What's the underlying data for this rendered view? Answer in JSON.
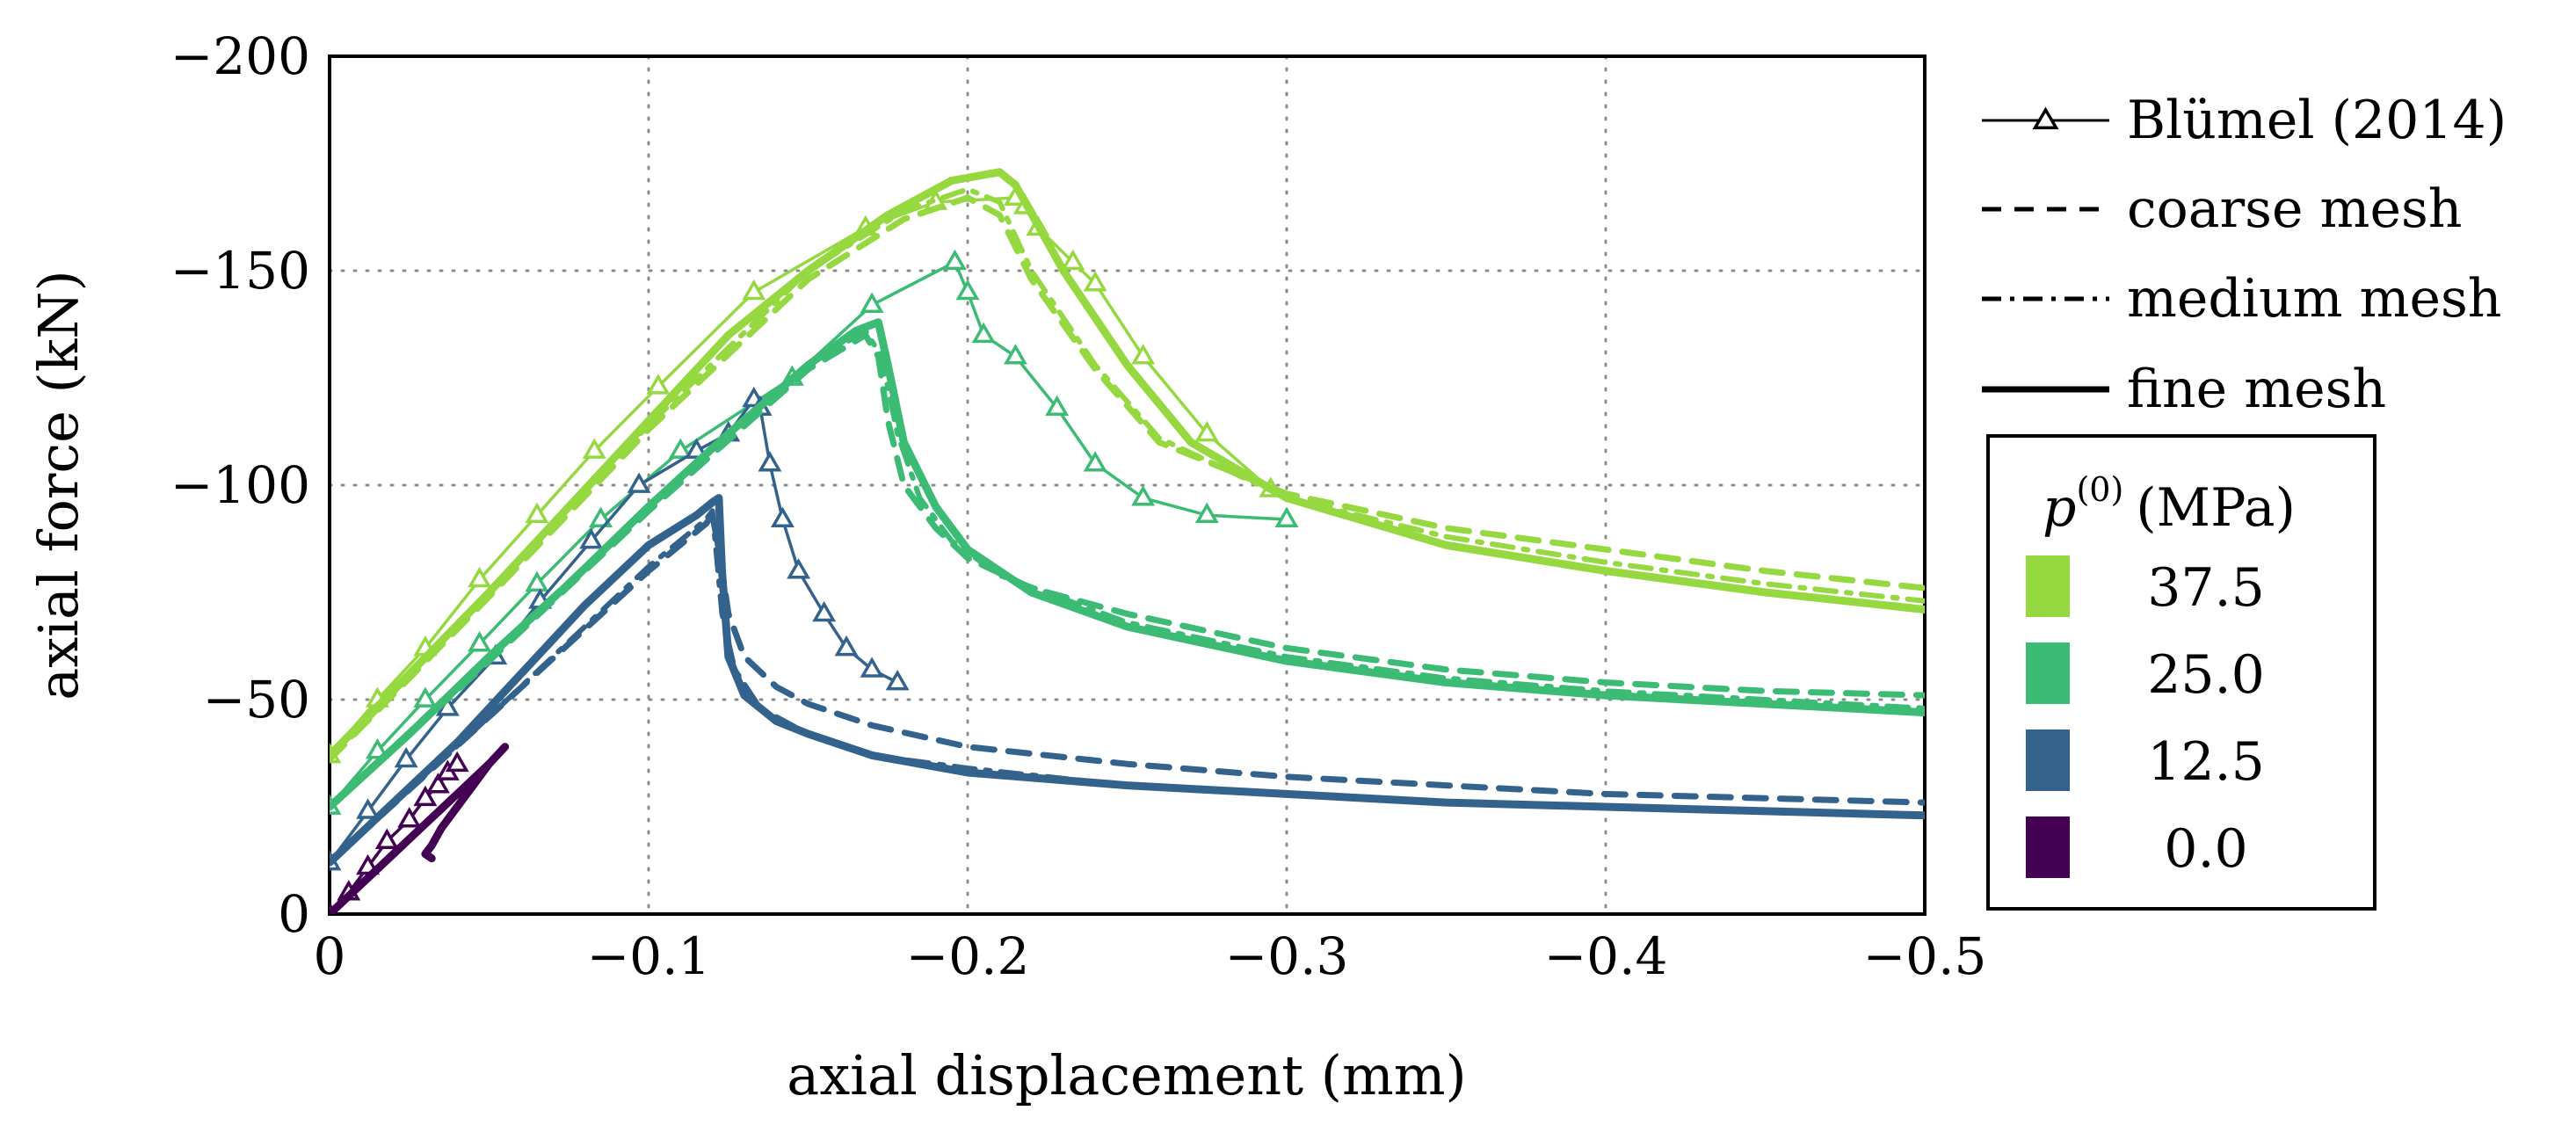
{
  "chart_data": {
    "type": "line",
    "title": "",
    "xlabel": "axial displacement (mm)",
    "ylabel": "axial force (kN)",
    "xlim": [
      0,
      -0.5
    ],
    "ylim": [
      0,
      -200
    ],
    "grid": true,
    "x_ticks": [
      0,
      -0.1,
      -0.2,
      -0.3,
      -0.4,
      -0.5
    ],
    "x_tick_labels": [
      "0",
      "−0.1",
      "−0.2",
      "−0.3",
      "−0.4",
      "−0.5"
    ],
    "y_ticks": [
      0,
      -50,
      -100,
      -150,
      -200
    ],
    "y_tick_labels": [
      "0",
      "−50",
      "−100",
      "−150",
      "−200"
    ],
    "style_legend": [
      {
        "label": "Blümel (2014)",
        "style": "marker-triangle"
      },
      {
        "label": "coarse mesh",
        "style": "dashed"
      },
      {
        "label": "medium mesh",
        "style": "dashdot"
      },
      {
        "label": "fine mesh",
        "style": "solid"
      }
    ],
    "pressure_legend": {
      "title_symbol": "p",
      "title_superscript": "(0)",
      "title_unit": "(MPa)",
      "entries": [
        {
          "label": "37.5",
          "color": "#95d840"
        },
        {
          "label": "25.0",
          "color": "#3cbb75"
        },
        {
          "label": "12.5",
          "color": "#33638d"
        },
        {
          "label": "0.0",
          "color": "#440154"
        }
      ]
    },
    "series": [
      {
        "name": "Blümel (2014)",
        "pressure": "37.5",
        "style": "marker-triangle",
        "color": "#95d840",
        "x": [
          0,
          -0.015,
          -0.03,
          -0.047,
          -0.065,
          -0.083,
          -0.103,
          -0.133,
          -0.168,
          -0.19,
          -0.215,
          -0.218,
          -0.222,
          -0.233,
          -0.24,
          -0.255,
          -0.275,
          -0.295
        ],
        "y": [
          -37,
          -50,
          -62,
          -78,
          -93,
          -108,
          -123,
          -145,
          -160,
          -166,
          -167,
          -165,
          -160,
          -152,
          -147,
          -130,
          -112,
          -99
        ]
      },
      {
        "name": "Blümel (2014)",
        "pressure": "25.0",
        "style": "marker-triangle",
        "color": "#3cbb75",
        "x": [
          0,
          -0.015,
          -0.03,
          -0.047,
          -0.065,
          -0.085,
          -0.11,
          -0.145,
          -0.17,
          -0.196,
          -0.2,
          -0.205,
          -0.215,
          -0.228,
          -0.24,
          -0.255,
          -0.275,
          -0.3
        ],
        "y": [
          -25,
          -38,
          -50,
          -63,
          -77,
          -92,
          -108,
          -125,
          -142,
          -152,
          -145,
          -135,
          -130,
          -118,
          -105,
          -97,
          -93,
          -92
        ]
      },
      {
        "name": "Blümel (2014)",
        "pressure": "12.5",
        "style": "marker-triangle",
        "color": "#33638d",
        "x": [
          0,
          -0.012,
          -0.024,
          -0.037,
          -0.052,
          -0.066,
          -0.082,
          -0.097,
          -0.115,
          -0.125,
          -0.133,
          -0.135,
          -0.138,
          -0.142,
          -0.147,
          -0.155,
          -0.162,
          -0.17,
          -0.178
        ],
        "y": [
          -12,
          -24,
          -36,
          -48,
          -60,
          -73,
          -87,
          -100,
          -108,
          -112,
          -120,
          -118,
          -105,
          -92,
          -80,
          -70,
          -62,
          -57,
          -54
        ]
      },
      {
        "name": "Blümel (2014)",
        "pressure": "0.0",
        "style": "marker-triangle",
        "color": "#440154",
        "x": [
          0,
          -0.006,
          -0.012,
          -0.018,
          -0.025,
          -0.03,
          -0.034,
          -0.037,
          -0.04
        ],
        "y": [
          0,
          -5,
          -11,
          -17,
          -22,
          -27,
          -30,
          -33,
          -35
        ]
      },
      {
        "name": "fine mesh",
        "pressure": "37.5",
        "style": "solid",
        "color": "#95d840",
        "x": [
          0,
          -0.025,
          -0.05,
          -0.075,
          -0.1,
          -0.125,
          -0.15,
          -0.175,
          -0.195,
          -0.21,
          -0.215,
          -0.23,
          -0.25,
          -0.27,
          -0.3,
          -0.35,
          -0.4,
          -0.45,
          -0.5
        ],
        "y": [
          -37,
          -56,
          -75,
          -95,
          -115,
          -135,
          -150,
          -163,
          -171,
          -173,
          -170,
          -150,
          -128,
          -110,
          -97,
          -86,
          -80,
          -75,
          -71
        ]
      },
      {
        "name": "coarse mesh",
        "pressure": "37.5",
        "style": "dashed",
        "color": "#95d840",
        "x": [
          0,
          -0.05,
          -0.1,
          -0.15,
          -0.18,
          -0.2,
          -0.21,
          -0.22,
          -0.24,
          -0.26,
          -0.3,
          -0.35,
          -0.4,
          -0.45,
          -0.5
        ],
        "y": [
          -36,
          -74,
          -113,
          -148,
          -162,
          -167,
          -163,
          -148,
          -127,
          -110,
          -98,
          -90,
          -85,
          -80,
          -76
        ]
      },
      {
        "name": "medium mesh",
        "pressure": "37.5",
        "style": "dashdot",
        "color": "#95d840",
        "x": [
          0,
          -0.05,
          -0.1,
          -0.15,
          -0.18,
          -0.2,
          -0.21,
          -0.22,
          -0.24,
          -0.26,
          -0.3,
          -0.35,
          -0.4,
          -0.45,
          -0.5
        ],
        "y": [
          -36,
          -75,
          -114,
          -150,
          -164,
          -169,
          -166,
          -150,
          -128,
          -111,
          -97,
          -88,
          -82,
          -77,
          -73
        ]
      },
      {
        "name": "fine mesh",
        "pressure": "25.0",
        "style": "solid",
        "color": "#3cbb75",
        "x": [
          0,
          -0.025,
          -0.05,
          -0.075,
          -0.1,
          -0.125,
          -0.15,
          -0.165,
          -0.172,
          -0.175,
          -0.18,
          -0.19,
          -0.2,
          -0.22,
          -0.25,
          -0.3,
          -0.35,
          -0.4,
          -0.45,
          -0.5
        ],
        "y": [
          -25,
          -42,
          -60,
          -77,
          -95,
          -112,
          -128,
          -136,
          -138,
          -128,
          -110,
          -95,
          -85,
          -75,
          -67,
          -59,
          -54,
          -51,
          -49,
          -47
        ]
      },
      {
        "name": "coarse mesh",
        "pressure": "25.0",
        "style": "dashed",
        "color": "#3cbb75",
        "x": [
          0,
          -0.05,
          -0.1,
          -0.15,
          -0.168,
          -0.172,
          -0.175,
          -0.18,
          -0.19,
          -0.2,
          -0.22,
          -0.25,
          -0.3,
          -0.35,
          -0.4,
          -0.45,
          -0.5
        ],
        "y": [
          -25,
          -59,
          -94,
          -127,
          -135,
          -130,
          -115,
          -100,
          -90,
          -83,
          -76,
          -70,
          -62,
          -57,
          -54,
          -52,
          -51
        ]
      },
      {
        "name": "medium mesh",
        "pressure": "25.0",
        "style": "dashdot",
        "color": "#3cbb75",
        "x": [
          0,
          -0.05,
          -0.1,
          -0.15,
          -0.168,
          -0.173,
          -0.178,
          -0.185,
          -0.195,
          -0.21,
          -0.25,
          -0.3,
          -0.35,
          -0.4,
          -0.45,
          -0.5
        ],
        "y": [
          -25,
          -60,
          -95,
          -128,
          -136,
          -130,
          -112,
          -97,
          -87,
          -79,
          -68,
          -60,
          -55,
          -52,
          -50,
          -48
        ]
      },
      {
        "name": "fine mesh",
        "pressure": "12.5",
        "style": "solid",
        "color": "#33638d",
        "x": [
          0,
          -0.02,
          -0.04,
          -0.06,
          -0.08,
          -0.1,
          -0.115,
          -0.12,
          -0.122,
          -0.123,
          -0.125,
          -0.13,
          -0.14,
          -0.15,
          -0.17,
          -0.2,
          -0.25,
          -0.3,
          -0.35,
          -0.4,
          -0.45,
          -0.5
        ],
        "y": [
          -12,
          -26,
          -40,
          -56,
          -72,
          -86,
          -93,
          -96,
          -97,
          -80,
          -60,
          -51,
          -45,
          -42,
          -37,
          -33,
          -30,
          -28,
          -26,
          -25,
          -24,
          -23
        ]
      },
      {
        "name": "coarse mesh",
        "pressure": "12.5",
        "style": "dashed",
        "color": "#33638d",
        "x": [
          0,
          -0.05,
          -0.1,
          -0.118,
          -0.12,
          -0.122,
          -0.125,
          -0.13,
          -0.14,
          -0.15,
          -0.17,
          -0.2,
          -0.25,
          -0.3,
          -0.35,
          -0.4,
          -0.45,
          -0.5
        ],
        "y": [
          -12,
          -46,
          -80,
          -91,
          -93,
          -85,
          -70,
          -60,
          -53,
          -49,
          -44,
          -39,
          -35,
          -32,
          -30,
          -28,
          -27,
          -26
        ]
      },
      {
        "name": "medium mesh",
        "pressure": "12.5",
        "style": "dashdot",
        "color": "#33638d",
        "x": [
          0,
          -0.05,
          -0.1,
          -0.118,
          -0.12,
          -0.121,
          -0.123,
          -0.127,
          -0.135,
          -0.15,
          -0.17,
          -0.2,
          -0.25,
          -0.3,
          -0.35,
          -0.4,
          -0.45,
          -0.5
        ],
        "y": [
          -12,
          -46,
          -81,
          -92,
          -94,
          -86,
          -70,
          -57,
          -48,
          -42,
          -37,
          -34,
          -30,
          -28,
          -26,
          -25,
          -24,
          -23
        ]
      },
      {
        "name": "fine mesh",
        "pressure": "0.0",
        "style": "solid",
        "color": "#440154",
        "x": [
          0,
          -0.01,
          -0.02,
          -0.03,
          -0.04,
          -0.05,
          -0.055,
          -0.05,
          -0.045,
          -0.04,
          -0.035,
          -0.032,
          -0.03,
          -0.032
        ],
        "y": [
          0,
          -7,
          -14,
          -21,
          -28,
          -35,
          -39,
          -35,
          -30,
          -25,
          -20,
          -16,
          -14,
          -13
        ]
      }
    ]
  }
}
